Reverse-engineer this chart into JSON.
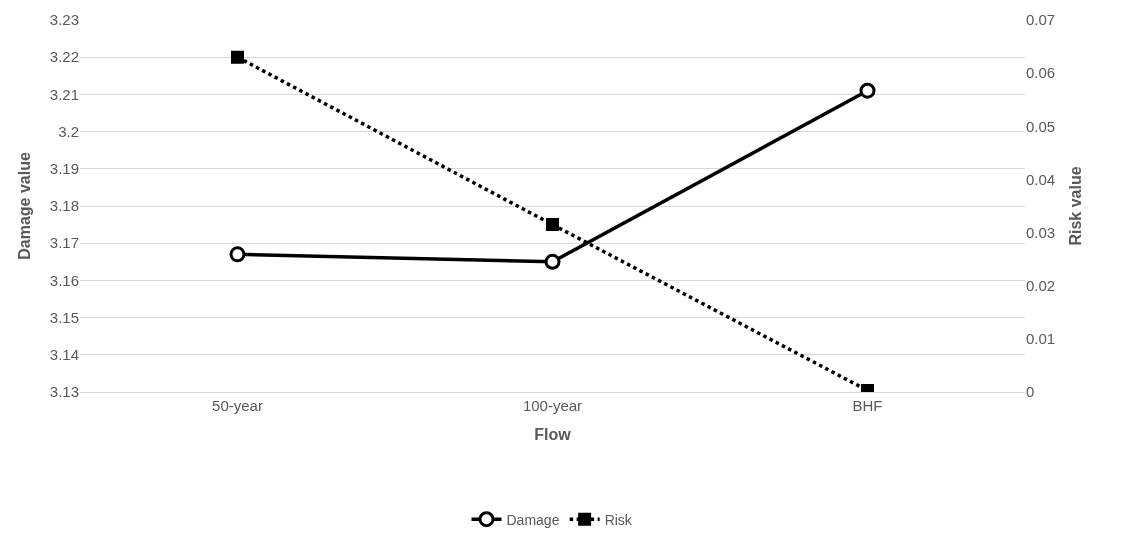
{
  "chart_data": {
    "type": "line",
    "xlabel": "Flow",
    "ylabel": "Damage value",
    "y2label": "Risk value",
    "categories": [
      "50-year",
      "100-year",
      "BHF"
    ],
    "series": [
      {
        "name": "Damage",
        "color": "#000000",
        "values": [
          3.167,
          3.165,
          3.211
        ],
        "marker": "circle",
        "line_style": "solid"
      },
      {
        "name": "Risk",
        "color": "#000000",
        "values": [
          0.063,
          0.0315,
          0.0003
        ],
        "axis": "y2",
        "marker": "square",
        "line_style": "dotted"
      }
    ],
    "ylim": [
      3.13,
      3.23
    ],
    "yticks": [
      3.13,
      3.14,
      3.15,
      3.16,
      3.17,
      3.18,
      3.19,
      {
        "value": 3.2,
        "label": "3.2"
      },
      3.21,
      3.22,
      3.23
    ],
    "y2lim": [
      0,
      0.07
    ],
    "y2ticks": [
      0,
      0.01,
      0.02,
      0.03,
      0.04,
      0.05,
      0.06,
      0.07
    ],
    "grid": "y",
    "legend": "bottom"
  }
}
